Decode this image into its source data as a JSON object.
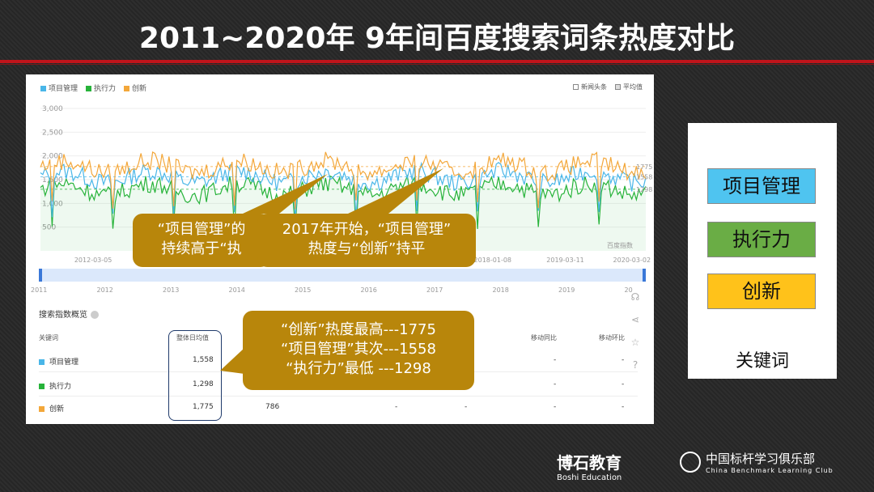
{
  "title": "2011~2020年 9年间百度搜索词条热度对比",
  "legend": {
    "items": [
      {
        "label": "项目管理",
        "color": "#49b6e8"
      },
      {
        "label": "执行力",
        "color": "#27b33a"
      },
      {
        "label": "创新",
        "color": "#f3a73a"
      }
    ],
    "options": [
      {
        "label": "新闻头条",
        "checked": false
      },
      {
        "label": "平均值",
        "checked": true
      }
    ]
  },
  "chart_data": {
    "type": "line",
    "ylim": [
      0,
      3000
    ],
    "yticks": [
      "3,000",
      "2,500",
      "2,000",
      "1,500",
      "1,000",
      "500"
    ],
    "xticks": [
      "2012-03-05",
      "2018-01-08",
      "2019-03-11",
      "2020-03-02"
    ],
    "series": [
      {
        "name": "项目管理",
        "avg": 1558
      },
      {
        "name": "执行力",
        "avg": 1298
      },
      {
        "name": "创新",
        "avg": 1775
      }
    ],
    "watermark": "百度指数",
    "end_labels": [
      "1775",
      "1558",
      "1298"
    ]
  },
  "years": [
    "2011",
    "2012",
    "2013",
    "2014",
    "2015",
    "2016",
    "2017",
    "2018",
    "2019",
    "20"
  ],
  "table": {
    "section_title": "搜索指数概览",
    "headers": {
      "keyword": "关键词",
      "avg": "整体日均值",
      "yoy": "移动同比",
      "mom": "移动环比"
    },
    "rows": [
      {
        "name": "项目管理",
        "color": "#49b6e8",
        "avg": "1,558",
        "extra": "",
        "yoy": "-",
        "mom": "-"
      },
      {
        "name": "执行力",
        "color": "#27b33a",
        "avg": "1,298",
        "extra": "",
        "yoy": "-",
        "mom": "-"
      },
      {
        "name": "创新",
        "color": "#f3a73a",
        "avg": "1,775",
        "extra": "786",
        "d1": "-",
        "d2": "-",
        "yoy": "-",
        "mom": "-"
      }
    ]
  },
  "callouts": {
    "c1_line1": "“项目管理”的",
    "c1_line2": "持续高于“执",
    "c2_line1": "2017年开始，“项目管理”",
    "c2_line2": "热度与“创新”持平",
    "c3_line1": "“创新”热度最高---1775",
    "c3_line2": "“项目管理”其次---1558",
    "c3_line3": "“执行力”最低 ---1298"
  },
  "keywords": {
    "items": [
      {
        "label": "项目管理",
        "color": "#4fc4f0"
      },
      {
        "label": "执行力",
        "color": "#6aad45"
      },
      {
        "label": "创新",
        "color": "#ffc21a"
      }
    ],
    "caption": "关键词"
  },
  "logos": {
    "boshi_cn": "博石教育",
    "boshi_en": "Boshi Education",
    "club_cn": "中国标杆学习俱乐部",
    "club_en": "China Benchmark Learning Club"
  }
}
